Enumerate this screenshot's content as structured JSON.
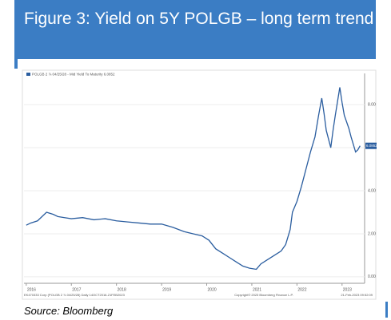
{
  "chart_data": {
    "type": "line",
    "title": "Figure 3: Yield on 5Y POLGB – long term trend",
    "source": "Source: Bloomberg",
    "footer_left": "EK470333 Corp (POLGB 2 ⅞ 04/25/28) Daily 14OCT2016-21FEB2023",
    "footer_center": "Copyright© 2023 Bloomberg Finance L.P.",
    "footer_right": "21-Feb-2023 09:52:09",
    "xlim": [
      2015.95,
      2023.5
    ],
    "xticks": [
      2016,
      2017,
      2018,
      2019,
      2020,
      2021,
      2022,
      2023
    ],
    "ylim": [
      -0.3,
      9.3
    ],
    "yticks": [
      {
        "value": 0,
        "label": "0.00"
      },
      {
        "value": 2,
        "label": "2.00"
      },
      {
        "value": 4,
        "label": "4.00"
      },
      {
        "value": 6,
        "label": "6.00"
      },
      {
        "value": 8,
        "label": "8.00"
      }
    ],
    "grid": true,
    "series": [
      {
        "name": "POLGB 2 ⅞ 04/25/28 - Mid Yield To Maturity 6.0852",
        "color": "#2a5d9f",
        "x": [
          2016.0,
          2016.1,
          2016.25,
          2016.35,
          2016.45,
          2016.6,
          2016.7,
          2016.85,
          2017.0,
          2017.25,
          2017.5,
          2017.75,
          2018.0,
          2018.25,
          2018.5,
          2018.75,
          2019.0,
          2019.25,
          2019.5,
          2019.7,
          2019.9,
          2020.05,
          2020.2,
          2020.35,
          2020.5,
          2020.65,
          2020.8,
          2020.95,
          2021.1,
          2021.2,
          2021.35,
          2021.5,
          2021.65,
          2021.75,
          2021.85,
          2021.9,
          2022.0,
          2022.1,
          2022.2,
          2022.3,
          2022.4,
          2022.48,
          2022.55,
          2022.6,
          2022.65,
          2022.75,
          2022.8,
          2022.85,
          2022.95,
          2023.0,
          2023.05,
          2023.15,
          2023.2,
          2023.3,
          2023.35,
          2023.4
        ],
        "values": [
          2.4,
          2.5,
          2.6,
          2.8,
          3.0,
          2.9,
          2.8,
          2.75,
          2.7,
          2.75,
          2.65,
          2.7,
          2.6,
          2.55,
          2.5,
          2.45,
          2.45,
          2.3,
          2.1,
          2.0,
          1.9,
          1.7,
          1.3,
          1.1,
          0.9,
          0.7,
          0.5,
          0.4,
          0.35,
          0.6,
          0.8,
          1.0,
          1.2,
          1.5,
          2.2,
          3.0,
          3.5,
          4.2,
          5.0,
          5.8,
          6.5,
          7.5,
          8.3,
          7.6,
          6.8,
          6.0,
          6.8,
          7.5,
          8.8,
          8.1,
          7.5,
          6.9,
          6.5,
          5.8,
          5.9,
          6.0852
        ]
      }
    ]
  }
}
